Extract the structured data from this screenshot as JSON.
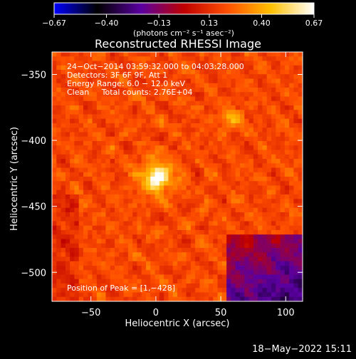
{
  "chart_data": {
    "type": "heatmap",
    "title": "Reconstructed RHESSI Image",
    "xlabel": "Heliocentric X (arcsec)",
    "ylabel": "Heliocentric Y (arcsec)",
    "xlim": [
      -80,
      113
    ],
    "ylim": [
      -522,
      -333
    ],
    "x_ticks": [
      -50,
      0,
      50,
      100
    ],
    "x_tick_labels": [
      "−50",
      "0",
      "50",
      "100"
    ],
    "y_ticks": [
      -350,
      -400,
      -450,
      -500
    ],
    "y_tick_labels": [
      "−350",
      "−400",
      "−450",
      "−500"
    ],
    "colorbar": {
      "range": [
        -0.67,
        0.67
      ],
      "ticks": [
        -0.67,
        -0.4,
        -0.13,
        0.13,
        0.4,
        0.67
      ],
      "tick_labels": [
        "−0.67",
        "−0.40",
        "−0.13",
        "0.13",
        "0.40",
        "0.67"
      ],
      "label": "(photons cm⁻² s⁻¹ asec⁻²)",
      "colormap": [
        "#0000ff",
        "#000000",
        "#5a00a0",
        "#c00000",
        "#ff5000",
        "#ffc000",
        "#ffffff"
      ]
    },
    "annotations": [
      "24−Oct−2014 03:59:32.000 to 04:03:28.000",
      "Detectors: 3F 6F 9F, Att 1",
      "Energy Range: 6.0 − 12.0 keV",
      "Clean     Total counts: 2.76E+04"
    ],
    "peak_label": "Position of Peak = [1,−428]",
    "peaks": [
      {
        "x": 1,
        "y": -428,
        "intensity": 0.67
      },
      {
        "x": 58,
        "y": -383,
        "intensity": 0.42
      }
    ]
  },
  "footer": {
    "date": "18−May−2022 15:11"
  }
}
